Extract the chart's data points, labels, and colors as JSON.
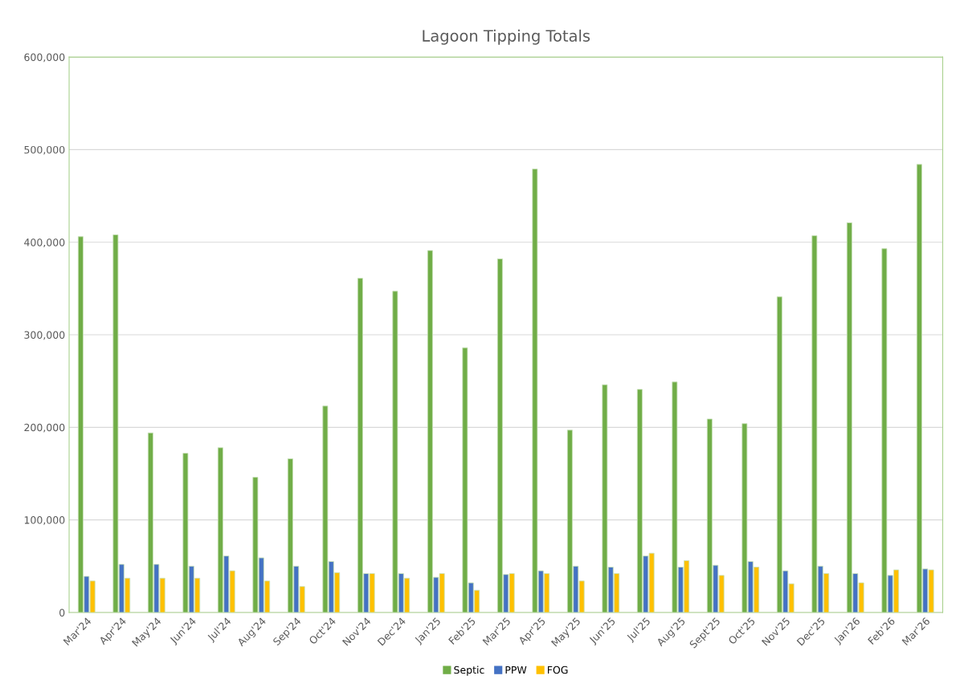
{
  "chart_data": {
    "type": "bar",
    "title": "Lagoon Tipping Totals",
    "categories": [
      "Mar'24",
      "Apr'24",
      "May'24",
      "Jun'24",
      "Jul'24",
      "Aug'24",
      "Sep'24",
      "Oct'24",
      "Nov'24",
      "Dec'24",
      "Jan'25",
      "Feb'25",
      "Mar'25",
      "Apr'25",
      "May'25",
      "Jun'25",
      "Jul'25",
      "Aug'25",
      "Sept'25",
      "Oct'25",
      "Nov'25",
      "Dec'25",
      "Jan'26",
      "Feb'26",
      "Mar'26"
    ],
    "series": [
      {
        "name": "Septic",
        "color": "#70ad47",
        "values": [
          406000,
          408000,
          194000,
          172000,
          178000,
          146000,
          166000,
          223000,
          361000,
          347000,
          391000,
          286000,
          382000,
          479000,
          197000,
          246000,
          241000,
          249000,
          209000,
          204000,
          341000,
          407000,
          421000,
          393000,
          484000
        ]
      },
      {
        "name": "PPW",
        "color": "#4472c4",
        "values": [
          39000,
          52000,
          52000,
          50000,
          61000,
          59000,
          50000,
          55000,
          42000,
          42000,
          38000,
          32000,
          41000,
          45000,
          50000,
          49000,
          61000,
          49000,
          51000,
          55000,
          45000,
          50000,
          42000,
          40000,
          47000
        ]
      },
      {
        "name": "FOG",
        "color": "#ffc000",
        "values": [
          34000,
          37000,
          37000,
          37000,
          45000,
          34000,
          28000,
          43000,
          42000,
          37000,
          42000,
          24000,
          42000,
          42000,
          34000,
          42000,
          64000,
          56000,
          40000,
          49000,
          31000,
          42000,
          32000,
          46000,
          46000
        ]
      }
    ],
    "ylim": [
      0,
      600000
    ],
    "yticks": [
      {
        "value": 0,
        "label": "0"
      },
      {
        "value": 100000,
        "label": "100,000"
      },
      {
        "value": 200000,
        "label": "200,000"
      },
      {
        "value": 300000,
        "label": "300,000"
      },
      {
        "value": 400000,
        "label": "400,000"
      },
      {
        "value": 500000,
        "label": "500,000"
      },
      {
        "value": 600000,
        "label": "600,000"
      }
    ],
    "grid": "y",
    "legend": "bottom"
  }
}
